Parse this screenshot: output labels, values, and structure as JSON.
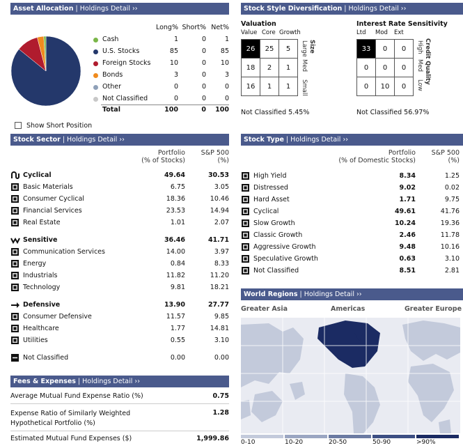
{
  "asset_allocation": {
    "header": "Asset Allocation",
    "header_link": "Holdings Detail",
    "columns": [
      "Long%",
      "Short%",
      "Net%"
    ],
    "rows": [
      {
        "label": "Cash",
        "long": "1",
        "short": "0",
        "net": "1",
        "color": "#7ab648"
      },
      {
        "label": "U.S. Stocks",
        "long": "85",
        "short": "0",
        "net": "85",
        "color": "#24386b"
      },
      {
        "label": "Foreign Stocks",
        "long": "10",
        "short": "0",
        "net": "10",
        "color": "#b01c2e"
      },
      {
        "label": "Bonds",
        "long": "3",
        "short": "0",
        "net": "3",
        "color": "#f08b1e"
      },
      {
        "label": "Other",
        "long": "0",
        "short": "0",
        "net": "0",
        "color": "#8fa0b8"
      },
      {
        "label": "Not Classified",
        "long": "0",
        "short": "0",
        "net": "0",
        "color": "#c8c8c8"
      }
    ],
    "total": {
      "label": "Total",
      "long": "100",
      "short": "0",
      "net": "100"
    },
    "show_short_label": "Show Short Position",
    "pie": [
      1,
      85,
      10,
      3,
      0,
      0
    ]
  },
  "style": {
    "header": "Stock Style Diversification",
    "header_link": "Holdings Detail",
    "equity": {
      "title": "Valuation",
      "cols": [
        "Value",
        "Core",
        "Growth"
      ],
      "side_title": "Size",
      "rows_labels": [
        "Large",
        "Med",
        "Small"
      ],
      "grid": [
        [
          "26",
          "25",
          "5"
        ],
        [
          "18",
          "2",
          "1"
        ],
        [
          "16",
          "1",
          "1"
        ]
      ],
      "highlight": [
        0,
        0
      ],
      "not_classified": "Not Classified 5.45%"
    },
    "fixed": {
      "title": "Interest Rate Sensitivity",
      "cols": [
        "Ltd",
        "Mod",
        "Ext"
      ],
      "side_title": "Credit Quality",
      "rows_labels": [
        "High",
        "Med",
        "Low"
      ],
      "grid": [
        [
          "33",
          "0",
          "0"
        ],
        [
          "0",
          "0",
          "0"
        ],
        [
          "0",
          "10",
          "0"
        ]
      ],
      "highlight": [
        0,
        0
      ],
      "not_classified": "Not Classified 56.97%"
    }
  },
  "sector": {
    "header": "Stock Sector",
    "header_link": "Holdings Detail",
    "col1": [
      "Portfolio",
      "(% of Stocks)"
    ],
    "col2": [
      "S&P 500",
      "(%)"
    ],
    "groups": [
      {
        "label": "Cyclical",
        "p": "49.64",
        "s": "30.53",
        "icon": "cyclical-icon",
        "items": [
          {
            "label": "Basic Materials",
            "p": "6.75",
            "s": "3.05",
            "icon": "basic-materials-icon"
          },
          {
            "label": "Consumer Cyclical",
            "p": "18.36",
            "s": "10.46",
            "icon": "consumer-cyclical-icon"
          },
          {
            "label": "Financial Services",
            "p": "23.53",
            "s": "14.94",
            "icon": "financial-services-icon"
          },
          {
            "label": "Real Estate",
            "p": "1.01",
            "s": "2.07",
            "icon": "real-estate-icon"
          }
        ]
      },
      {
        "label": "Sensitive",
        "p": "36.46",
        "s": "41.71",
        "icon": "sensitive-icon",
        "items": [
          {
            "label": "Communication Services",
            "p": "14.00",
            "s": "3.97",
            "icon": "communication-icon"
          },
          {
            "label": "Energy",
            "p": "0.84",
            "s": "8.33",
            "icon": "energy-icon"
          },
          {
            "label": "Industrials",
            "p": "11.82",
            "s": "11.20",
            "icon": "industrials-icon"
          },
          {
            "label": "Technology",
            "p": "9.81",
            "s": "18.21",
            "icon": "technology-icon"
          }
        ]
      },
      {
        "label": "Defensive",
        "p": "13.90",
        "s": "27.77",
        "icon": "defensive-icon",
        "items": [
          {
            "label": "Consumer Defensive",
            "p": "11.57",
            "s": "9.85",
            "icon": "consumer-defensive-icon"
          },
          {
            "label": "Healthcare",
            "p": "1.77",
            "s": "14.81",
            "icon": "healthcare-icon"
          },
          {
            "label": "Utilities",
            "p": "0.55",
            "s": "3.10",
            "icon": "utilities-icon"
          }
        ]
      }
    ],
    "not_classified": {
      "label": "Not Classified",
      "p": "0.00",
      "s": "0.00"
    }
  },
  "stock_type": {
    "header": "Stock Type",
    "header_link": "Holdings Detail",
    "col1": [
      "Portfolio",
      "(% of Domestic Stocks)"
    ],
    "col2": [
      "S&P 500",
      "(%)"
    ],
    "rows": [
      {
        "label": "High Yield",
        "p": "8.34",
        "s": "1.25",
        "icon": "high-yield-icon"
      },
      {
        "label": "Distressed",
        "p": "9.02",
        "s": "0.02",
        "icon": "distressed-icon"
      },
      {
        "label": "Hard Asset",
        "p": "1.71",
        "s": "9.75",
        "icon": "hard-asset-icon"
      },
      {
        "label": "Cyclical",
        "p": "49.61",
        "s": "41.76",
        "icon": "cyclical-type-icon"
      },
      {
        "label": "Slow Growth",
        "p": "10.24",
        "s": "19.36",
        "icon": "slow-growth-icon"
      },
      {
        "label": "Classic Growth",
        "p": "2.46",
        "s": "11.78",
        "icon": "classic-growth-icon"
      },
      {
        "label": "Aggressive Growth",
        "p": "9.48",
        "s": "10.16",
        "icon": "aggressive-growth-icon"
      },
      {
        "label": "Speculative Growth",
        "p": "0.63",
        "s": "3.10",
        "icon": "speculative-growth-icon"
      },
      {
        "label": "Not Classified",
        "p": "8.51",
        "s": "2.81",
        "icon": "not-classified-icon"
      }
    ]
  },
  "regions": {
    "header": "World Regions",
    "header_link": "Holdings Detail",
    "labels": [
      "Greater Asia",
      "Americas",
      "Greater Europe"
    ],
    "legend": [
      "0-10",
      "10-20",
      "20-50",
      "50-90",
      ">90%"
    ],
    "legend_colors": [
      "#c3cadb",
      "#9ba6c2",
      "#6c7ba3",
      "#3d4f84",
      "#1b2b63"
    ]
  },
  "fees": {
    "header": "Fees & Expenses",
    "header_link": "Holdings Detail",
    "rows": [
      {
        "label": "Average Mutual Fund Expense Ratio (%)",
        "value": "0.75"
      },
      {
        "label": "Expense Ratio of Similarly Weighted Hypothetical Portfolio (%)",
        "value": "1.28"
      },
      {
        "label": "Estimated Mutual Fund Expenses ($)",
        "value": "1,999.86"
      }
    ]
  }
}
